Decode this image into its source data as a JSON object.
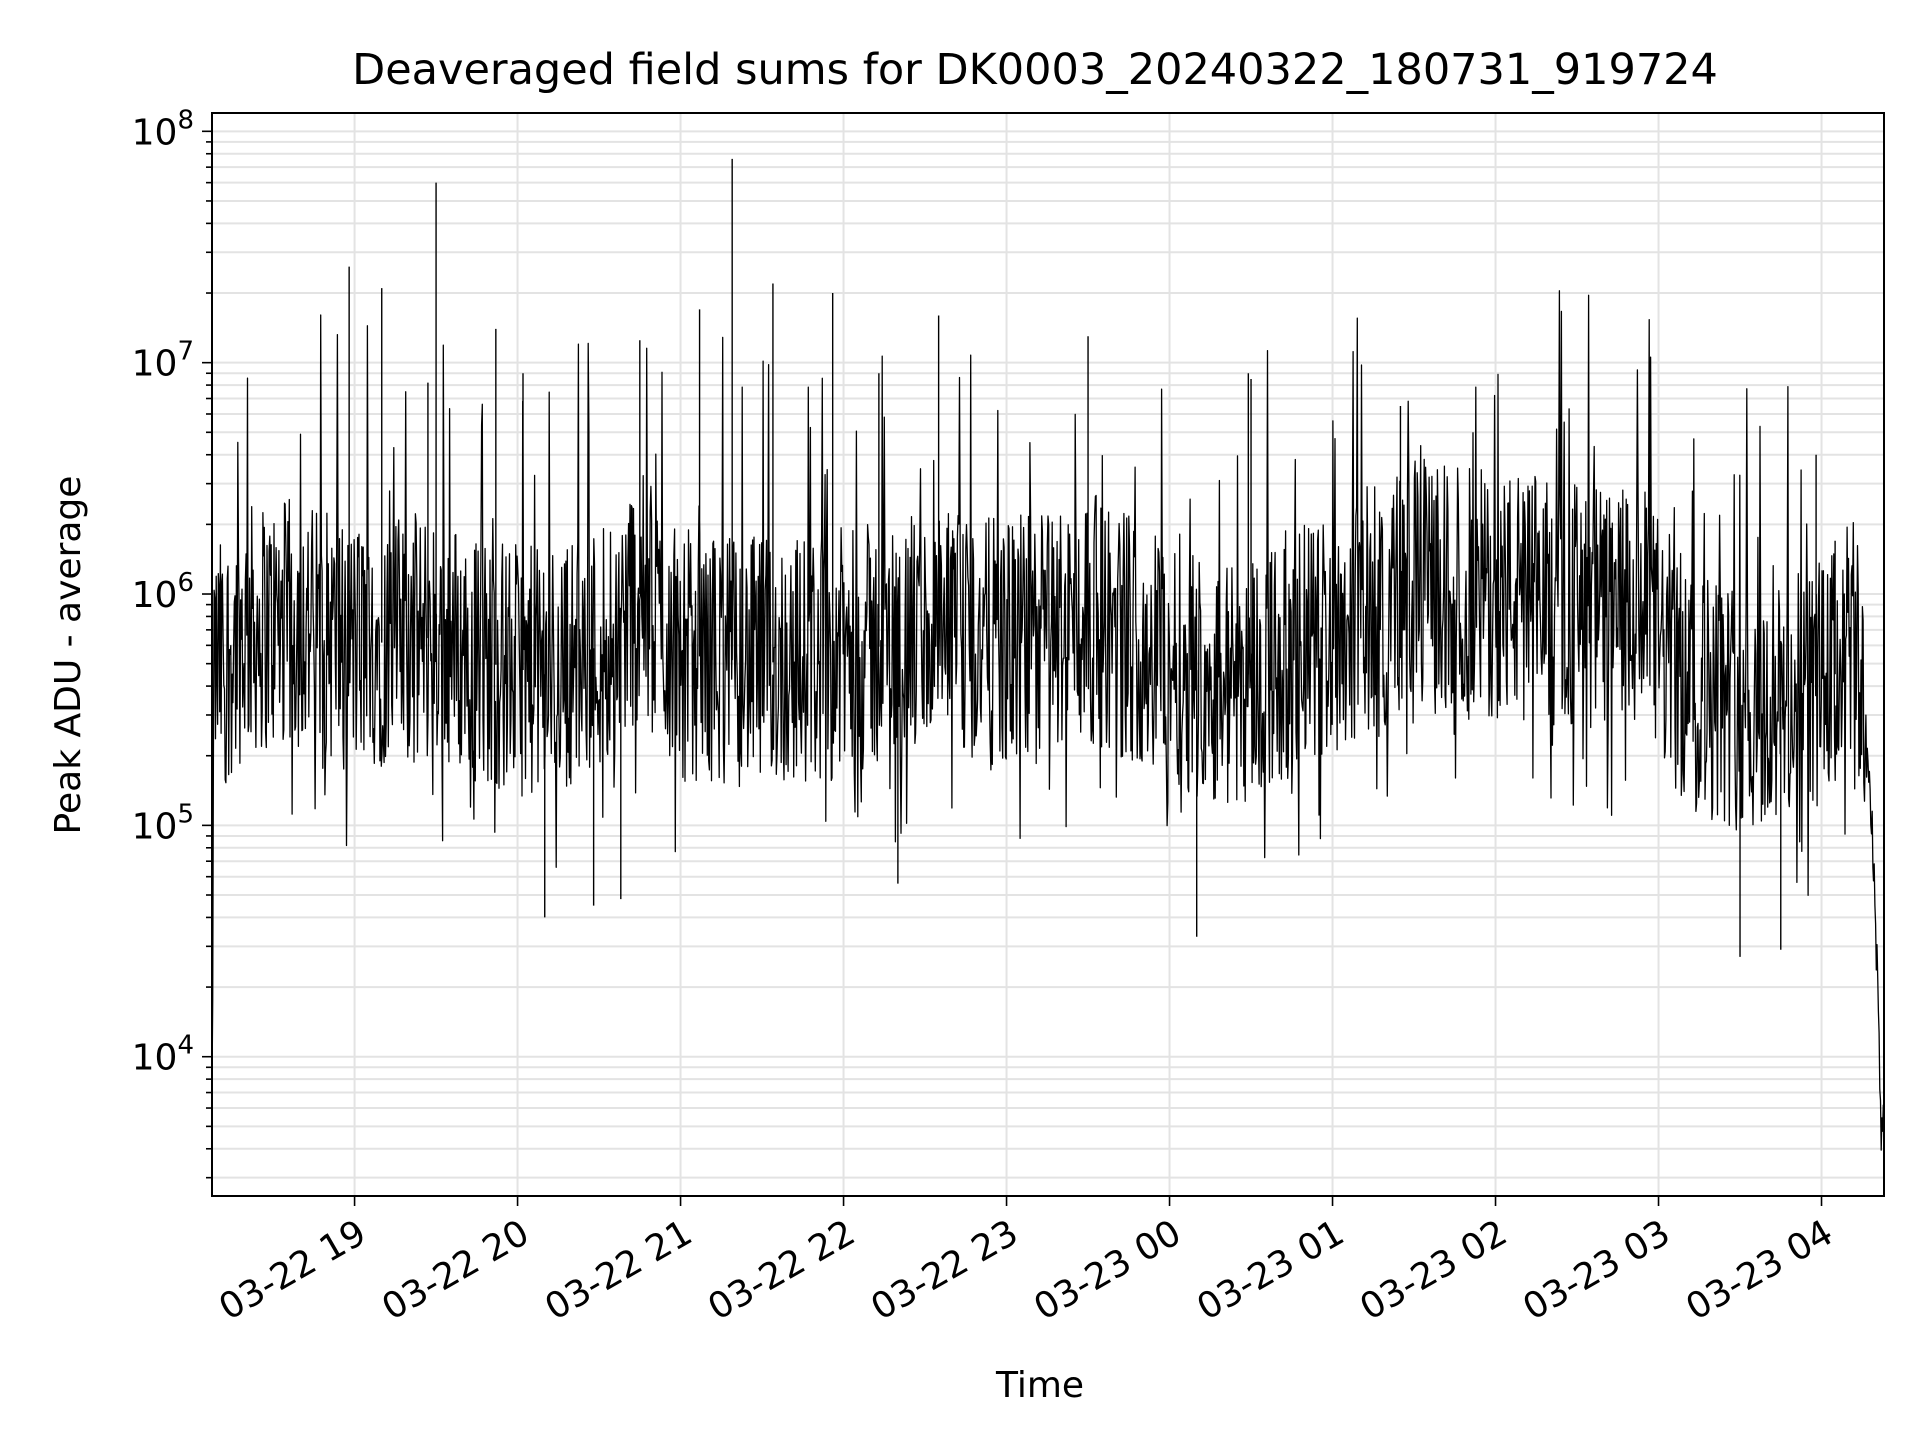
{
  "chart_data": {
    "type": "line",
    "title": "Deaveraged field sums for DK0003_20240322_180731_919724",
    "xlabel": "Time",
    "ylabel": "Peak ADU - average",
    "yscale": "log",
    "ylim": [
      2500,
      120000000
    ],
    "xlim": [
      "2024-03-22 18:07:31",
      "2024-03-23 04:23:00"
    ],
    "grid": true,
    "grid_minor": true,
    "x_ticks": [
      {
        "t": "2024-03-22 19:00",
        "label": "03-22 19"
      },
      {
        "t": "2024-03-22 20:00",
        "label": "03-22 20"
      },
      {
        "t": "2024-03-22 21:00",
        "label": "03-22 21"
      },
      {
        "t": "2024-03-22 22:00",
        "label": "03-22 22"
      },
      {
        "t": "2024-03-22 23:00",
        "label": "03-22 23"
      },
      {
        "t": "2024-03-23 00:00",
        "label": "03-23 00"
      },
      {
        "t": "2024-03-23 01:00",
        "label": "03-23 01"
      },
      {
        "t": "2024-03-23 02:00",
        "label": "03-23 02"
      },
      {
        "t": "2024-03-23 03:00",
        "label": "03-23 03"
      },
      {
        "t": "2024-03-23 04:00",
        "label": "03-23 04"
      }
    ],
    "y_ticks": [
      {
        "value": 10000,
        "base": "10",
        "exp": "4"
      },
      {
        "value": 100000,
        "base": "10",
        "exp": "5"
      },
      {
        "value": 1000000,
        "base": "10",
        "exp": "6"
      },
      {
        "value": 10000000,
        "base": "10",
        "exp": "7"
      },
      {
        "value": 100000000,
        "base": "10",
        "exp": "8"
      }
    ],
    "line_color": "#000000",
    "series": [
      {
        "envelope": [
          {
            "t": "2024-03-22 18:08",
            "y": 450000
          },
          {
            "t": "2024-03-22 18:20",
            "y": 700000
          },
          {
            "t": "2024-03-22 18:40",
            "y": 750000
          },
          {
            "t": "2024-03-22 19:00",
            "y": 600000
          },
          {
            "t": "2024-03-22 19:30",
            "y": 650000
          },
          {
            "t": "2024-03-22 19:50",
            "y": 500000
          },
          {
            "t": "2024-03-22 20:10",
            "y": 450000
          },
          {
            "t": "2024-03-22 20:30",
            "y": 600000
          },
          {
            "t": "2024-03-22 20:45",
            "y": 1000000
          },
          {
            "t": "2024-03-22 21:00",
            "y": 550000
          },
          {
            "t": "2024-03-22 21:30",
            "y": 500000
          },
          {
            "t": "2024-03-22 22:00",
            "y": 550000
          },
          {
            "t": "2024-03-22 22:30",
            "y": 650000
          },
          {
            "t": "2024-03-22 23:00",
            "y": 600000
          },
          {
            "t": "2024-03-22 23:30",
            "y": 800000
          },
          {
            "t": "2024-03-23 00:00",
            "y": 550000
          },
          {
            "t": "2024-03-23 00:20",
            "y": 400000
          },
          {
            "t": "2024-03-23 00:45",
            "y": 550000
          },
          {
            "t": "2024-03-23 01:00",
            "y": 700000
          },
          {
            "t": "2024-03-23 01:30",
            "y": 1100000
          },
          {
            "t": "2024-03-23 02:00",
            "y": 1000000
          },
          {
            "t": "2024-03-23 02:30",
            "y": 900000
          },
          {
            "t": "2024-03-23 02:55",
            "y": 800000
          },
          {
            "t": "2024-03-23 03:10",
            "y": 400000
          },
          {
            "t": "2024-03-23 03:40",
            "y": 300000
          },
          {
            "t": "2024-03-23 04:05",
            "y": 450000
          },
          {
            "t": "2024-03-23 04:10",
            "y": 700000
          },
          {
            "t": "2024-03-23 04:15",
            "y": 400000
          },
          {
            "t": "2024-03-23 04:18",
            "y": 120000
          },
          {
            "t": "2024-03-23 04:20",
            "y": 40000
          },
          {
            "t": "2024-03-23 04:22",
            "y": 5000
          },
          {
            "t": "2024-03-23 04:23",
            "y": 5000
          }
        ],
        "spikes": [
          {
            "t": "2024-03-22 18:58",
            "y": 26000000
          },
          {
            "t": "2024-03-22 19:10",
            "y": 21000000
          },
          {
            "t": "2024-03-22 19:30",
            "y": 60000000
          },
          {
            "t": "2024-03-22 19:27",
            "y": 8200000
          },
          {
            "t": "2024-03-22 19:52",
            "y": 14000000
          },
          {
            "t": "2024-03-22 20:02",
            "y": 9000000
          },
          {
            "t": "2024-03-22 20:45",
            "y": 12500000
          },
          {
            "t": "2024-03-22 21:07",
            "y": 17000000
          },
          {
            "t": "2024-03-22 21:19",
            "y": 76000000
          },
          {
            "t": "2024-03-22 21:34",
            "y": 22000000
          },
          {
            "t": "2024-03-22 21:56",
            "y": 20000000
          },
          {
            "t": "2024-03-22 22:13",
            "y": 9000000
          },
          {
            "t": "2024-03-22 22:35",
            "y": 16000000
          },
          {
            "t": "2024-03-22 23:30",
            "y": 13000000
          },
          {
            "t": "2024-03-23 00:29",
            "y": 9000000
          },
          {
            "t": "2024-03-23 00:30",
            "y": 8500000
          },
          {
            "t": "2024-03-23 01:25",
            "y": 6500000
          },
          {
            "t": "2024-03-23 03:58",
            "y": 4000000
          },
          {
            "t": "2024-03-23 04:05",
            "y": 1700000
          },
          {
            "t": "2024-03-22 20:10",
            "y": 40000
          },
          {
            "t": "2024-03-22 20:28",
            "y": 45000
          },
          {
            "t": "2024-03-22 20:38",
            "y": 48000
          },
          {
            "t": "2024-03-22 22:20",
            "y": 56000
          },
          {
            "t": "2024-03-23 00:10",
            "y": 33000
          },
          {
            "t": "2024-03-23 03:30",
            "y": 27000
          },
          {
            "t": "2024-03-23 03:45",
            "y": 29000
          }
        ]
      }
    ]
  }
}
